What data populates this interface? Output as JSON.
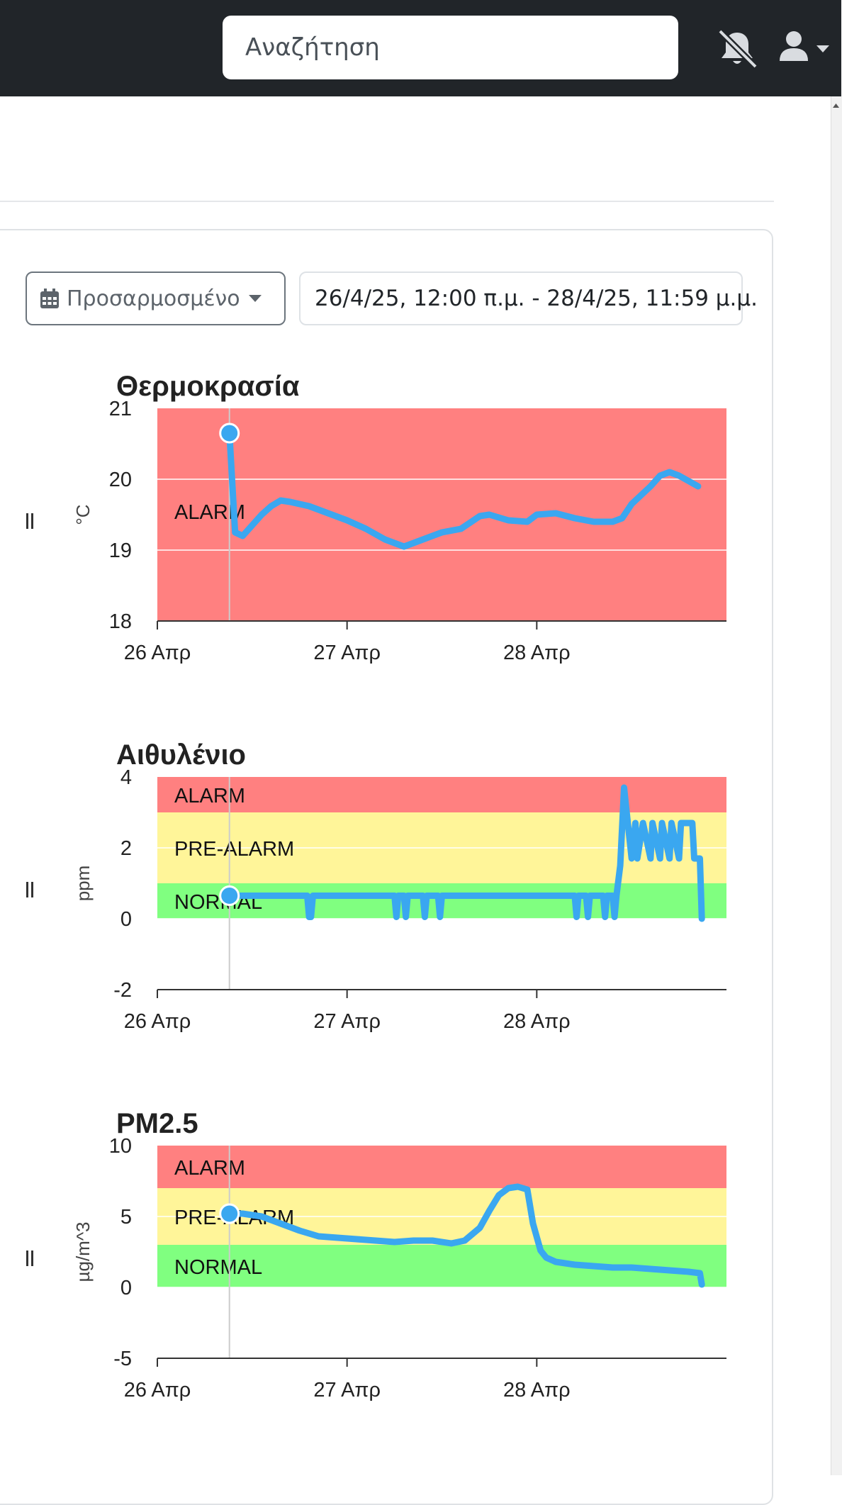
{
  "topbar": {
    "search_placeholder": "Αναζήτηση",
    "icons": [
      "bell-slash-icon",
      "user-icon",
      "caret-down-icon"
    ]
  },
  "toolbar": {
    "range_label": "Προσαρμοσμένο",
    "date_range": "26/4/25, 12:00 π.μ. - 28/4/25, 11:59 μ.μ."
  },
  "colors": {
    "alarm": "#ff8080",
    "prealarm": "#fff599",
    "normal": "#80ff80",
    "series": "#3aa7f0"
  },
  "chart_data": [
    {
      "type": "line",
      "title": "Θερμοκρασία",
      "ylabel": "°C",
      "ylim": [
        18,
        21
      ],
      "yticks": [
        "18",
        "19",
        "20",
        "21"
      ],
      "xticks": [
        "26 Απρ",
        "27 Απρ",
        "28 Απρ"
      ],
      "xlim": [
        0,
        3
      ],
      "bands": [
        {
          "label": "ALARM",
          "from": 18,
          "to": 21,
          "color": "#ff8080"
        }
      ],
      "series": [
        {
          "x": [
            0.38,
            0.41,
            0.45,
            0.5,
            0.55,
            0.6,
            0.65,
            0.7,
            0.8,
            0.9,
            1.0,
            1.1,
            1.2,
            1.3,
            1.35,
            1.4,
            1.5,
            1.6,
            1.7,
            1.75,
            1.85,
            1.95,
            2.0,
            2.1,
            2.2,
            2.3,
            2.4,
            2.45,
            2.5,
            2.6,
            2.65,
            2.7,
            2.75,
            2.85
          ],
          "y": [
            20.65,
            19.25,
            19.2,
            19.35,
            19.5,
            19.62,
            19.7,
            19.68,
            19.62,
            19.52,
            19.42,
            19.3,
            19.15,
            19.05,
            19.1,
            19.15,
            19.25,
            19.3,
            19.48,
            19.5,
            19.42,
            19.4,
            19.5,
            19.52,
            19.45,
            19.4,
            19.4,
            19.45,
            19.65,
            19.9,
            20.05,
            20.1,
            20.05,
            19.9
          ]
        }
      ],
      "cursor_x": 0.38,
      "grid": true
    },
    {
      "type": "line",
      "title": "Αιθυλένιο",
      "ylabel": "ppm",
      "ylim": [
        -2,
        4
      ],
      "yticks": [
        "-2",
        "0",
        "2",
        "4"
      ],
      "xticks": [
        "26 Απρ",
        "27 Απρ",
        "28 Απρ"
      ],
      "xlim": [
        0,
        3
      ],
      "bands": [
        {
          "label": "NORMAL",
          "from": 0,
          "to": 1,
          "color": "#80ff80"
        },
        {
          "label": "PRE-ALARM",
          "from": 1,
          "to": 3,
          "color": "#fff599"
        },
        {
          "label": "ALARM",
          "from": 3,
          "to": 4,
          "color": "#ff8080"
        }
      ],
      "series": [
        {
          "x": [
            0.38,
            0.79,
            0.8,
            0.81,
            0.82,
            1.25,
            1.26,
            1.27,
            1.3,
            1.31,
            1.32,
            1.4,
            1.41,
            1.42,
            1.48,
            1.49,
            1.5,
            2.2,
            2.21,
            2.22,
            2.26,
            2.27,
            2.28,
            2.35,
            2.36,
            2.37,
            2.4,
            2.41,
            2.42,
            2.44,
            2.46,
            2.48,
            2.5,
            2.52,
            2.53,
            2.56,
            2.6,
            2.61,
            2.65,
            2.66,
            2.7,
            2.71,
            2.75,
            2.76,
            2.82,
            2.83,
            2.86,
            2.87
          ],
          "y": [
            0.65,
            0.65,
            0.05,
            0.05,
            0.65,
            0.65,
            0.05,
            0.65,
            0.65,
            0.05,
            0.65,
            0.65,
            0.05,
            0.65,
            0.65,
            0.05,
            0.65,
            0.65,
            0.05,
            0.65,
            0.65,
            0.05,
            0.65,
            0.65,
            0.05,
            0.65,
            0.65,
            0.05,
            0.65,
            1.5,
            3.7,
            2.7,
            1.7,
            2.7,
            1.7,
            2.7,
            1.7,
            2.7,
            1.7,
            2.7,
            1.7,
            2.7,
            1.7,
            2.7,
            2.7,
            1.7,
            1.7,
            0.0
          ]
        }
      ],
      "cursor_x": 0.38,
      "grid": true
    },
    {
      "type": "line",
      "title": "PM2.5",
      "ylabel": "µg/m^3",
      "ylim": [
        -5,
        10
      ],
      "yticks": [
        "-5",
        "0",
        "5",
        "10"
      ],
      "xticks": [
        "26 Απρ",
        "27 Απρ",
        "28 Απρ"
      ],
      "xlim": [
        0,
        3
      ],
      "bands": [
        {
          "label": "NORMAL",
          "from": 0,
          "to": 3,
          "color": "#80ff80"
        },
        {
          "label": "PRE-ALARM",
          "from": 3,
          "to": 7,
          "color": "#fff599"
        },
        {
          "label": "ALARM",
          "from": 7,
          "to": 10,
          "color": "#ff8080"
        }
      ],
      "series": [
        {
          "x": [
            0.38,
            0.45,
            0.55,
            0.65,
            0.75,
            0.85,
            0.95,
            1.05,
            1.15,
            1.25,
            1.35,
            1.45,
            1.55,
            1.62,
            1.7,
            1.75,
            1.8,
            1.85,
            1.9,
            1.95,
            1.98,
            2.02,
            2.05,
            2.1,
            2.2,
            2.3,
            2.4,
            2.5,
            2.6,
            2.7,
            2.8,
            2.86,
            2.87
          ],
          "y": [
            5.2,
            5.2,
            5.0,
            4.5,
            4.0,
            3.6,
            3.5,
            3.4,
            3.3,
            3.2,
            3.3,
            3.3,
            3.1,
            3.3,
            4.2,
            5.4,
            6.5,
            7.0,
            7.1,
            6.9,
            4.5,
            2.6,
            2.1,
            1.8,
            1.6,
            1.5,
            1.4,
            1.4,
            1.3,
            1.2,
            1.1,
            1.0,
            0.2
          ]
        }
      ],
      "cursor_x": 0.38,
      "grid": true
    }
  ]
}
